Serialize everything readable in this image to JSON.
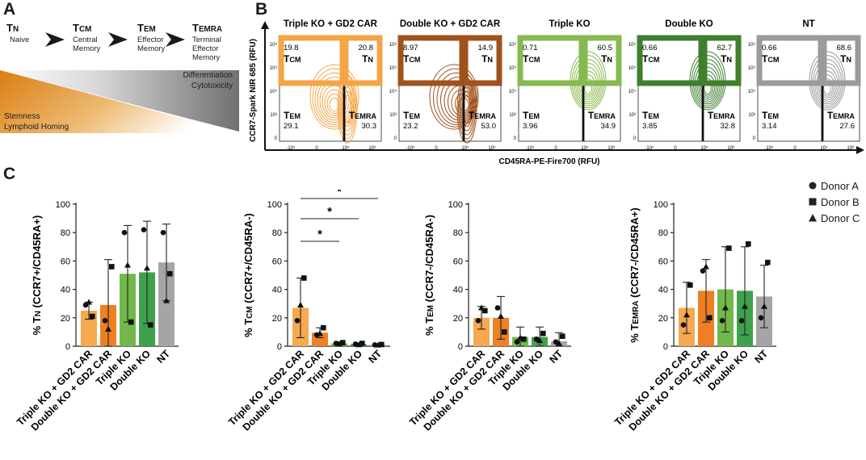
{
  "panels": {
    "a": "A",
    "b": "B",
    "c": "C"
  },
  "colors": {
    "triple_gd2": "#F4A546",
    "double_gd2": "#A0521D",
    "triple_ko": "#86B94F",
    "double_ko": "#3F7F2E",
    "nt": "#9B9B9B",
    "bar_triple_gd2": "#F6A94F",
    "bar_double_gd2": "#EE7F23",
    "bar_triple_ko": "#72B84A",
    "bar_double_ko": "#3EA14B",
    "bar_nt": "#A5A5A5"
  },
  "panel_a": {
    "stages": [
      {
        "abbr": "TN",
        "desc": [
          "Naive"
        ]
      },
      {
        "abbr": "TCM",
        "desc": [
          "Central",
          "Memory"
        ]
      },
      {
        "abbr": "TEM",
        "desc": [
          "Effector",
          "Memory"
        ]
      },
      {
        "abbr": "TEMRA",
        "desc": [
          "Terminal",
          "Effector",
          "Memory"
        ]
      }
    ],
    "gradient_labels": {
      "top": [
        "Differentiation",
        "Cytotoxicity"
      ],
      "bottom": [
        "Stemness",
        "Lymphoid Homing"
      ]
    }
  },
  "panel_b": {
    "y_axis_label": "CCR7-Spark NIR 685 (RFU)",
    "x_axis_label": "CD45RA-PE-Fire700 (RFU)",
    "quadrant_names": {
      "tcm": "TCM",
      "tn": "TN",
      "tem": "TEM",
      "temra": "TEMRA"
    },
    "plots": [
      {
        "title": "Triple KO + GD2 CAR",
        "color_key": "triple_gd2",
        "tcm": "19.8",
        "tn": "20.8",
        "tem": "29.1",
        "temra": "30.3"
      },
      {
        "title": "Double KO + GD2 CAR",
        "color_key": "double_gd2",
        "tcm": "8.97",
        "tn": "14.9",
        "tem": "23.2",
        "temra": "53.0"
      },
      {
        "title": "Triple KO",
        "color_key": "triple_ko",
        "tcm": "0.71",
        "tn": "60.5",
        "tem": "3.96",
        "temra": "34.9"
      },
      {
        "title": "Double KO",
        "color_key": "double_ko",
        "tcm": "0.66",
        "tn": "62.7",
        "tem": "3.85",
        "temra": "32.8"
      },
      {
        "title": "NT",
        "color_key": "nt",
        "tcm": "0.66",
        "tn": "68.6",
        "tem": "3.14",
        "temra": "27.6"
      }
    ],
    "y_ticks": [
      "10⁶",
      "10⁵",
      "10⁴",
      "10³",
      "0"
    ],
    "x_ticks": [
      "-10⁴",
      "0",
      "10⁴",
      "10⁶"
    ]
  },
  "chart_data": [
    {
      "type": "bar",
      "title": "",
      "ylabel": "% TN (CCR7+/CD45RA+)",
      "ylim": [
        0,
        100
      ],
      "yticks": [
        "0",
        "20",
        "40",
        "60",
        "80",
        "100"
      ],
      "categories": [
        "Triple KO + GD2 CAR",
        "Double KO + GD2 CAR",
        "Triple KO",
        "Double KO",
        "NT"
      ],
      "values": [
        25,
        29,
        51,
        52,
        59
      ],
      "errors": [
        6,
        32,
        34,
        36,
        27
      ],
      "donors": {
        "A": [
          29,
          18,
          80,
          82,
          80
        ],
        "B": [
          21,
          56,
          17,
          15,
          51
        ],
        "C": [
          31,
          12,
          57,
          55,
          32
        ]
      },
      "significance": []
    },
    {
      "type": "bar",
      "title": "",
      "ylabel": "% TCM (CCR7+/CD45RA-)",
      "ylim": [
        0,
        100
      ],
      "yticks": [
        "0",
        "20",
        "40",
        "60",
        "80",
        "100"
      ],
      "categories": [
        "Triple KO + GD2 CAR",
        "Double KO + GD2 CAR",
        "Triple KO",
        "Double KO",
        "NT"
      ],
      "values": [
        27,
        9.5,
        2,
        1.5,
        1
      ],
      "errors": [
        21,
        3.5,
        1,
        0.8,
        0.6
      ],
      "donors": {
        "A": [
          18,
          8,
          2,
          1.5,
          1
        ],
        "B": [
          48,
          13,
          2.5,
          2,
          1.2
        ],
        "C": [
          29,
          9,
          1.5,
          1,
          0.8
        ]
      },
      "significance": [
        {
          "from": 0,
          "to": 4,
          "label": "*"
        },
        {
          "from": 0,
          "to": 3,
          "label": "*"
        },
        {
          "from": 0,
          "to": 2,
          "label": "*"
        }
      ]
    },
    {
      "type": "bar",
      "title": "",
      "ylabel": "% TEM (CCR7-/CD45RA-)",
      "ylim": [
        0,
        100
      ],
      "yticks": [
        "0",
        "20",
        "40",
        "60",
        "80",
        "100"
      ],
      "categories": [
        "Triple KO + GD2 CAR",
        "Double KO + GD2 CAR",
        "Triple KO",
        "Double KO",
        "NT"
      ],
      "values": [
        20,
        20,
        6.5,
        6.5,
        3.5
      ],
      "errors": [
        8,
        15,
        7,
        7,
        6
      ],
      "donors": {
        "A": [
          18,
          27,
          3,
          5,
          3
        ],
        "B": [
          25,
          10,
          5,
          9,
          7
        ],
        "C": [
          27,
          21,
          6,
          4,
          2
        ]
      },
      "significance": []
    },
    {
      "type": "bar",
      "title": "",
      "ylabel": "% TEMRA (CCR7-/CD45RA+)",
      "ylim": [
        0,
        100
      ],
      "yticks": [
        "0",
        "20",
        "40",
        "60",
        "80",
        "100"
      ],
      "categories": [
        "Triple KO + GD2 CAR",
        "Double KO + GD2 CAR",
        "Triple KO",
        "Double KO",
        "NT"
      ],
      "values": [
        27,
        39,
        40,
        39,
        35
      ],
      "errors": [
        18,
        22,
        30,
        31,
        22
      ],
      "donors": {
        "A": [
          15,
          53,
          18,
          18,
          20
        ],
        "B": [
          43,
          20,
          69,
          72,
          59
        ],
        "C": [
          22,
          56,
          27,
          28,
          28
        ]
      },
      "significance": []
    }
  ],
  "legend": [
    {
      "shape": "circle",
      "label": "Donor A"
    },
    {
      "shape": "square",
      "label": "Donor B"
    },
    {
      "shape": "triangle",
      "label": "Donor C"
    }
  ]
}
